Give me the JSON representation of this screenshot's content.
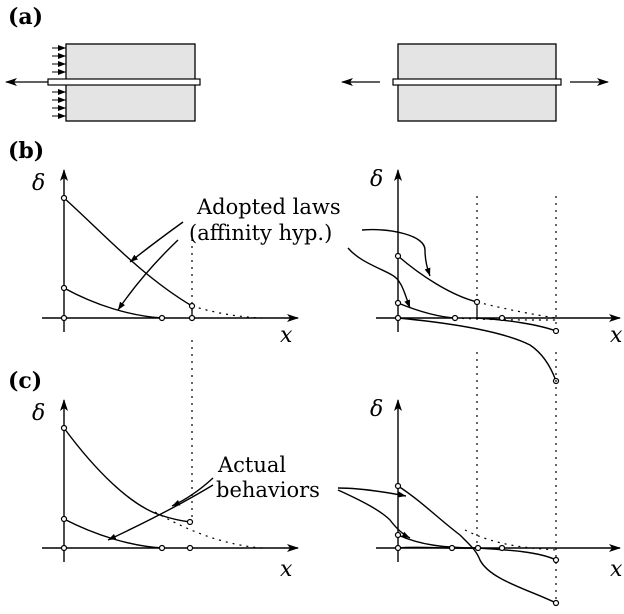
{
  "panels": {
    "a": "(a)",
    "b": "(b)",
    "c": "(c)"
  },
  "axes": {
    "delta": "δ",
    "x": "x"
  },
  "annotations": {
    "adopted_line1": "Adopted laws",
    "adopted_line2": "(affinity hyp.)",
    "actual_line1": "Actual",
    "actual_line2": "behaviors"
  },
  "colors": {
    "block_fill": "#e4e4e4",
    "stroke": "#000000"
  }
}
